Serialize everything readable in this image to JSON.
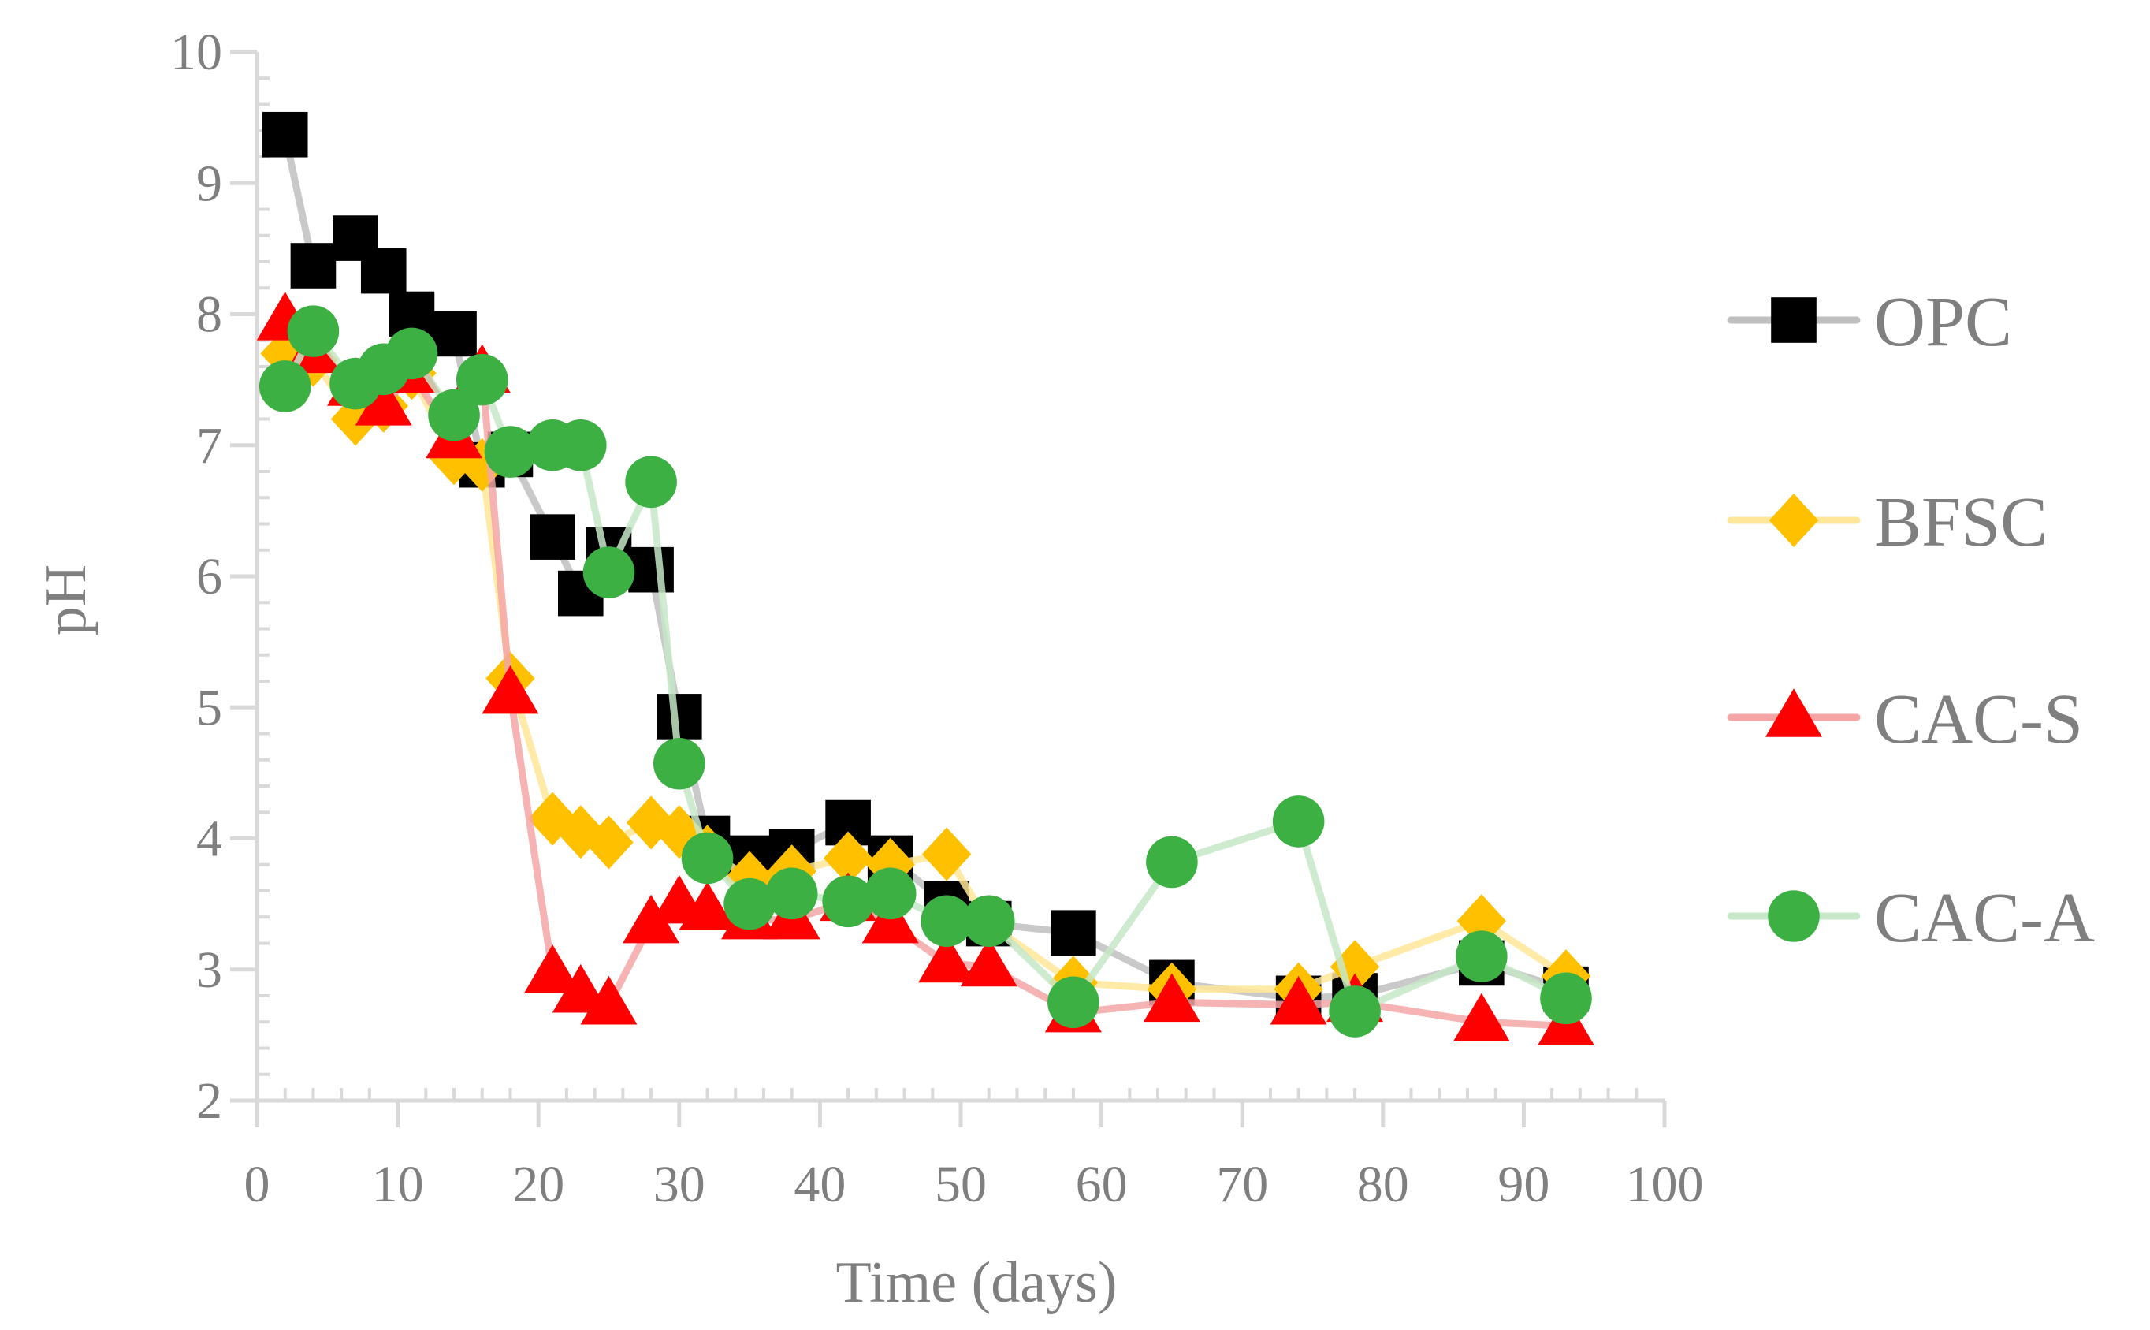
{
  "chart_data": {
    "type": "line",
    "title": "",
    "xlabel": "Time (days)",
    "ylabel": "pH",
    "xlim": [
      0,
      100
    ],
    "ylim": [
      2,
      10
    ],
    "x_ticks": [
      0,
      10,
      20,
      30,
      40,
      50,
      60,
      70,
      80,
      90,
      100
    ],
    "y_ticks": [
      2,
      3,
      4,
      5,
      6,
      7,
      8,
      9,
      10
    ],
    "x_tick_labels": [
      "0",
      "10",
      "20",
      "30",
      "40",
      "50",
      "60",
      "70",
      "80",
      "90",
      "100"
    ],
    "y_tick_labels": [
      "2",
      "3",
      "4",
      "5",
      "6",
      "7",
      "8",
      "9",
      "10"
    ],
    "legend_position": "right",
    "grid": false,
    "series": [
      {
        "name": "OPC",
        "marker": "square",
        "marker_color": "#000000",
        "line_color": "#bfbfbf",
        "points": [
          [
            2,
            9.37
          ],
          [
            4,
            8.37
          ],
          [
            7,
            8.58
          ],
          [
            9,
            8.33
          ],
          [
            11,
            8.0
          ],
          [
            14,
            7.85
          ],
          [
            16,
            6.85
          ],
          [
            18,
            6.93
          ],
          [
            21,
            6.3
          ],
          [
            23,
            5.87
          ],
          [
            25,
            6.2
          ],
          [
            28,
            6.05
          ],
          [
            30,
            4.93
          ],
          [
            32,
            4.0
          ],
          [
            35,
            3.85
          ],
          [
            38,
            3.9
          ],
          [
            42,
            4.12
          ],
          [
            45,
            3.85
          ],
          [
            49,
            3.5
          ],
          [
            52,
            3.35
          ],
          [
            58,
            3.28
          ],
          [
            65,
            2.9
          ],
          [
            74,
            2.78
          ],
          [
            78,
            2.8
          ],
          [
            87,
            3.05
          ],
          [
            93,
            2.85
          ]
        ]
      },
      {
        "name": "BFSC",
        "marker": "diamond",
        "marker_color": "#ffc000",
        "line_color": "#ffe699",
        "points": [
          [
            2,
            7.7
          ],
          [
            4,
            7.65
          ],
          [
            7,
            7.2
          ],
          [
            9,
            7.3
          ],
          [
            11,
            7.55
          ],
          [
            14,
            6.9
          ],
          [
            16,
            6.85
          ],
          [
            18,
            5.22
          ],
          [
            21,
            4.15
          ],
          [
            23,
            4.05
          ],
          [
            25,
            3.97
          ],
          [
            28,
            4.12
          ],
          [
            30,
            4.05
          ],
          [
            32,
            3.9
          ],
          [
            35,
            3.7
          ],
          [
            38,
            3.75
          ],
          [
            42,
            3.85
          ],
          [
            45,
            3.8
          ],
          [
            49,
            3.88
          ],
          [
            52,
            3.35
          ],
          [
            58,
            2.9
          ],
          [
            65,
            2.85
          ],
          [
            74,
            2.85
          ],
          [
            78,
            3.02
          ],
          [
            87,
            3.37
          ],
          [
            93,
            2.95
          ]
        ]
      },
      {
        "name": "CAC-S",
        "marker": "triangle",
        "marker_color": "#ff0000",
        "line_color": "#f4a6a6",
        "points": [
          [
            2,
            7.95
          ],
          [
            4,
            7.7
          ],
          [
            7,
            7.45
          ],
          [
            9,
            7.3
          ],
          [
            11,
            7.55
          ],
          [
            14,
            7.05
          ],
          [
            16,
            7.55
          ],
          [
            18,
            5.1
          ],
          [
            21,
            2.97
          ],
          [
            23,
            2.82
          ],
          [
            25,
            2.73
          ],
          [
            28,
            3.35
          ],
          [
            30,
            3.5
          ],
          [
            32,
            3.45
          ],
          [
            35,
            3.38
          ],
          [
            38,
            3.38
          ],
          [
            42,
            3.52
          ],
          [
            45,
            3.35
          ],
          [
            49,
            3.05
          ],
          [
            52,
            3.02
          ],
          [
            58,
            2.67
          ],
          [
            65,
            2.75
          ],
          [
            74,
            2.73
          ],
          [
            78,
            2.75
          ],
          [
            87,
            2.6
          ],
          [
            93,
            2.57
          ]
        ]
      },
      {
        "name": "CAC-A",
        "marker": "circle",
        "marker_color": "#3cb043",
        "line_color": "#c6e8c8",
        "points": [
          [
            2,
            7.45
          ],
          [
            4,
            7.87
          ],
          [
            7,
            7.47
          ],
          [
            9,
            7.58
          ],
          [
            11,
            7.7
          ],
          [
            14,
            7.23
          ],
          [
            16,
            7.5
          ],
          [
            18,
            6.95
          ],
          [
            21,
            7.0
          ],
          [
            23,
            7.0
          ],
          [
            25,
            6.03
          ],
          [
            28,
            6.72
          ],
          [
            30,
            4.57
          ],
          [
            32,
            3.85
          ],
          [
            35,
            3.5
          ],
          [
            38,
            3.58
          ],
          [
            42,
            3.52
          ],
          [
            45,
            3.58
          ],
          [
            49,
            3.37
          ],
          [
            52,
            3.37
          ],
          [
            58,
            2.75
          ],
          [
            65,
            3.82
          ],
          [
            74,
            4.13
          ],
          [
            78,
            2.68
          ],
          [
            87,
            3.1
          ],
          [
            93,
            2.78
          ]
        ]
      }
    ]
  }
}
